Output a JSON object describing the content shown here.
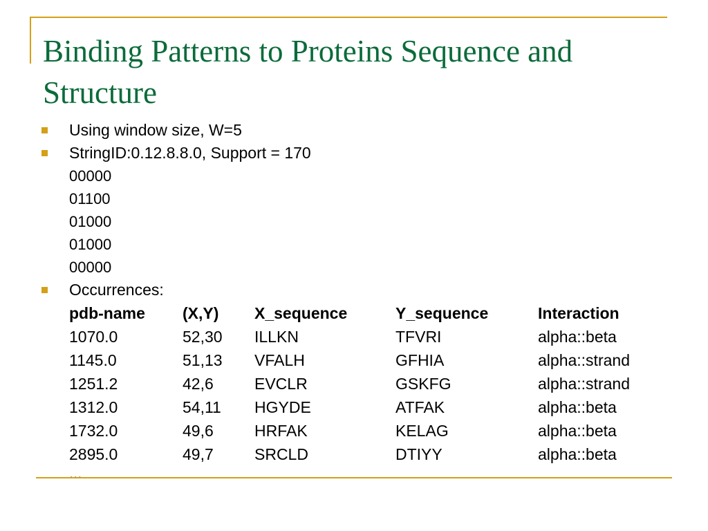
{
  "title": "Binding Patterns to Proteins Sequence and Structure",
  "colors": {
    "title": "#0b6b3a",
    "accent": "#d4a017"
  },
  "bullets": {
    "window": "Using window size, W=5",
    "string_id": "StringID:0.12.8.8.0, Support = 170",
    "occurrences": "Occurrences:"
  },
  "matrix": [
    "00000",
    "01100",
    "01000",
    "01000",
    "00000"
  ],
  "table": {
    "headers": [
      "pdb-name",
      "(X,Y)",
      "X_sequence",
      "Y_sequence",
      "Interaction"
    ],
    "rows": [
      [
        "1070.0",
        "52,30",
        "ILLKN",
        "TFVRI",
        "alpha::beta"
      ],
      [
        "1145.0",
        "51,13",
        "VFALH",
        "GFHIA",
        "alpha::strand"
      ],
      [
        "1251.2",
        "42,6",
        "EVCLR",
        "GSKFG",
        "alpha::strand"
      ],
      [
        "1312.0",
        "54,11",
        "HGYDE",
        "ATFAK",
        "alpha::beta"
      ],
      [
        "1732.0",
        "49,6",
        "HRFAK",
        "KELAG",
        "alpha::beta"
      ],
      [
        "2895.0",
        "49,7",
        "SRCLD",
        "DTIYY",
        "alpha::beta"
      ]
    ],
    "more": "..."
  }
}
